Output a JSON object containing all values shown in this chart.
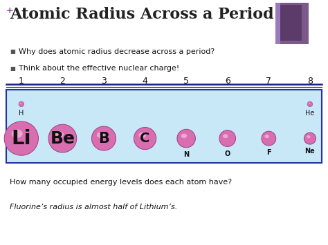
{
  "title": "Atomic Radius Across a Period",
  "title_color": "#222222",
  "plus_color": "#9b4f9b",
  "background_color": "#ffffff",
  "bullet1": "Why does atomic radius decrease across a period?",
  "bullet2": "Think about the effective nuclear charge!",
  "footer1": "How many occupied energy levels does each atom have?",
  "footer2": "Fluorine’s radius is almost half of Lithium’s.",
  "numbers": [
    "1",
    "2",
    "3",
    "4",
    "5",
    "6",
    "7",
    "8"
  ],
  "elements_top": [
    {
      "label": "H",
      "col": 0,
      "r": 0.008
    },
    {
      "label": "He",
      "col": 7,
      "r": 0.008
    }
  ],
  "elements_bottom": [
    {
      "label": "Li",
      "col": 0,
      "r": 0.052,
      "inside": true
    },
    {
      "label": "Be",
      "col": 1,
      "r": 0.043,
      "inside": true
    },
    {
      "label": "B",
      "col": 2,
      "r": 0.037,
      "inside": true
    },
    {
      "label": "C",
      "col": 3,
      "r": 0.034,
      "inside": true
    },
    {
      "label": "N",
      "col": 4,
      "r": 0.028,
      "inside": false
    },
    {
      "label": "O",
      "col": 5,
      "r": 0.025,
      "inside": false
    },
    {
      "label": "F",
      "col": 6,
      "r": 0.022,
      "inside": false
    },
    {
      "label": "Ne",
      "col": 7,
      "r": 0.018,
      "inside": false
    }
  ],
  "atom_fill": "#d86db0",
  "atom_highlight": "#f5c0e0",
  "atom_edge": "#a04080",
  "band_fill": "#c8e8f8",
  "band_edge": "#2233aa",
  "sep_color": "#1a2288",
  "dec_outer": "#7a5a8a",
  "dec_inner": "#5c3a6a",
  "bullet_color": "#555555",
  "text_color": "#111111"
}
